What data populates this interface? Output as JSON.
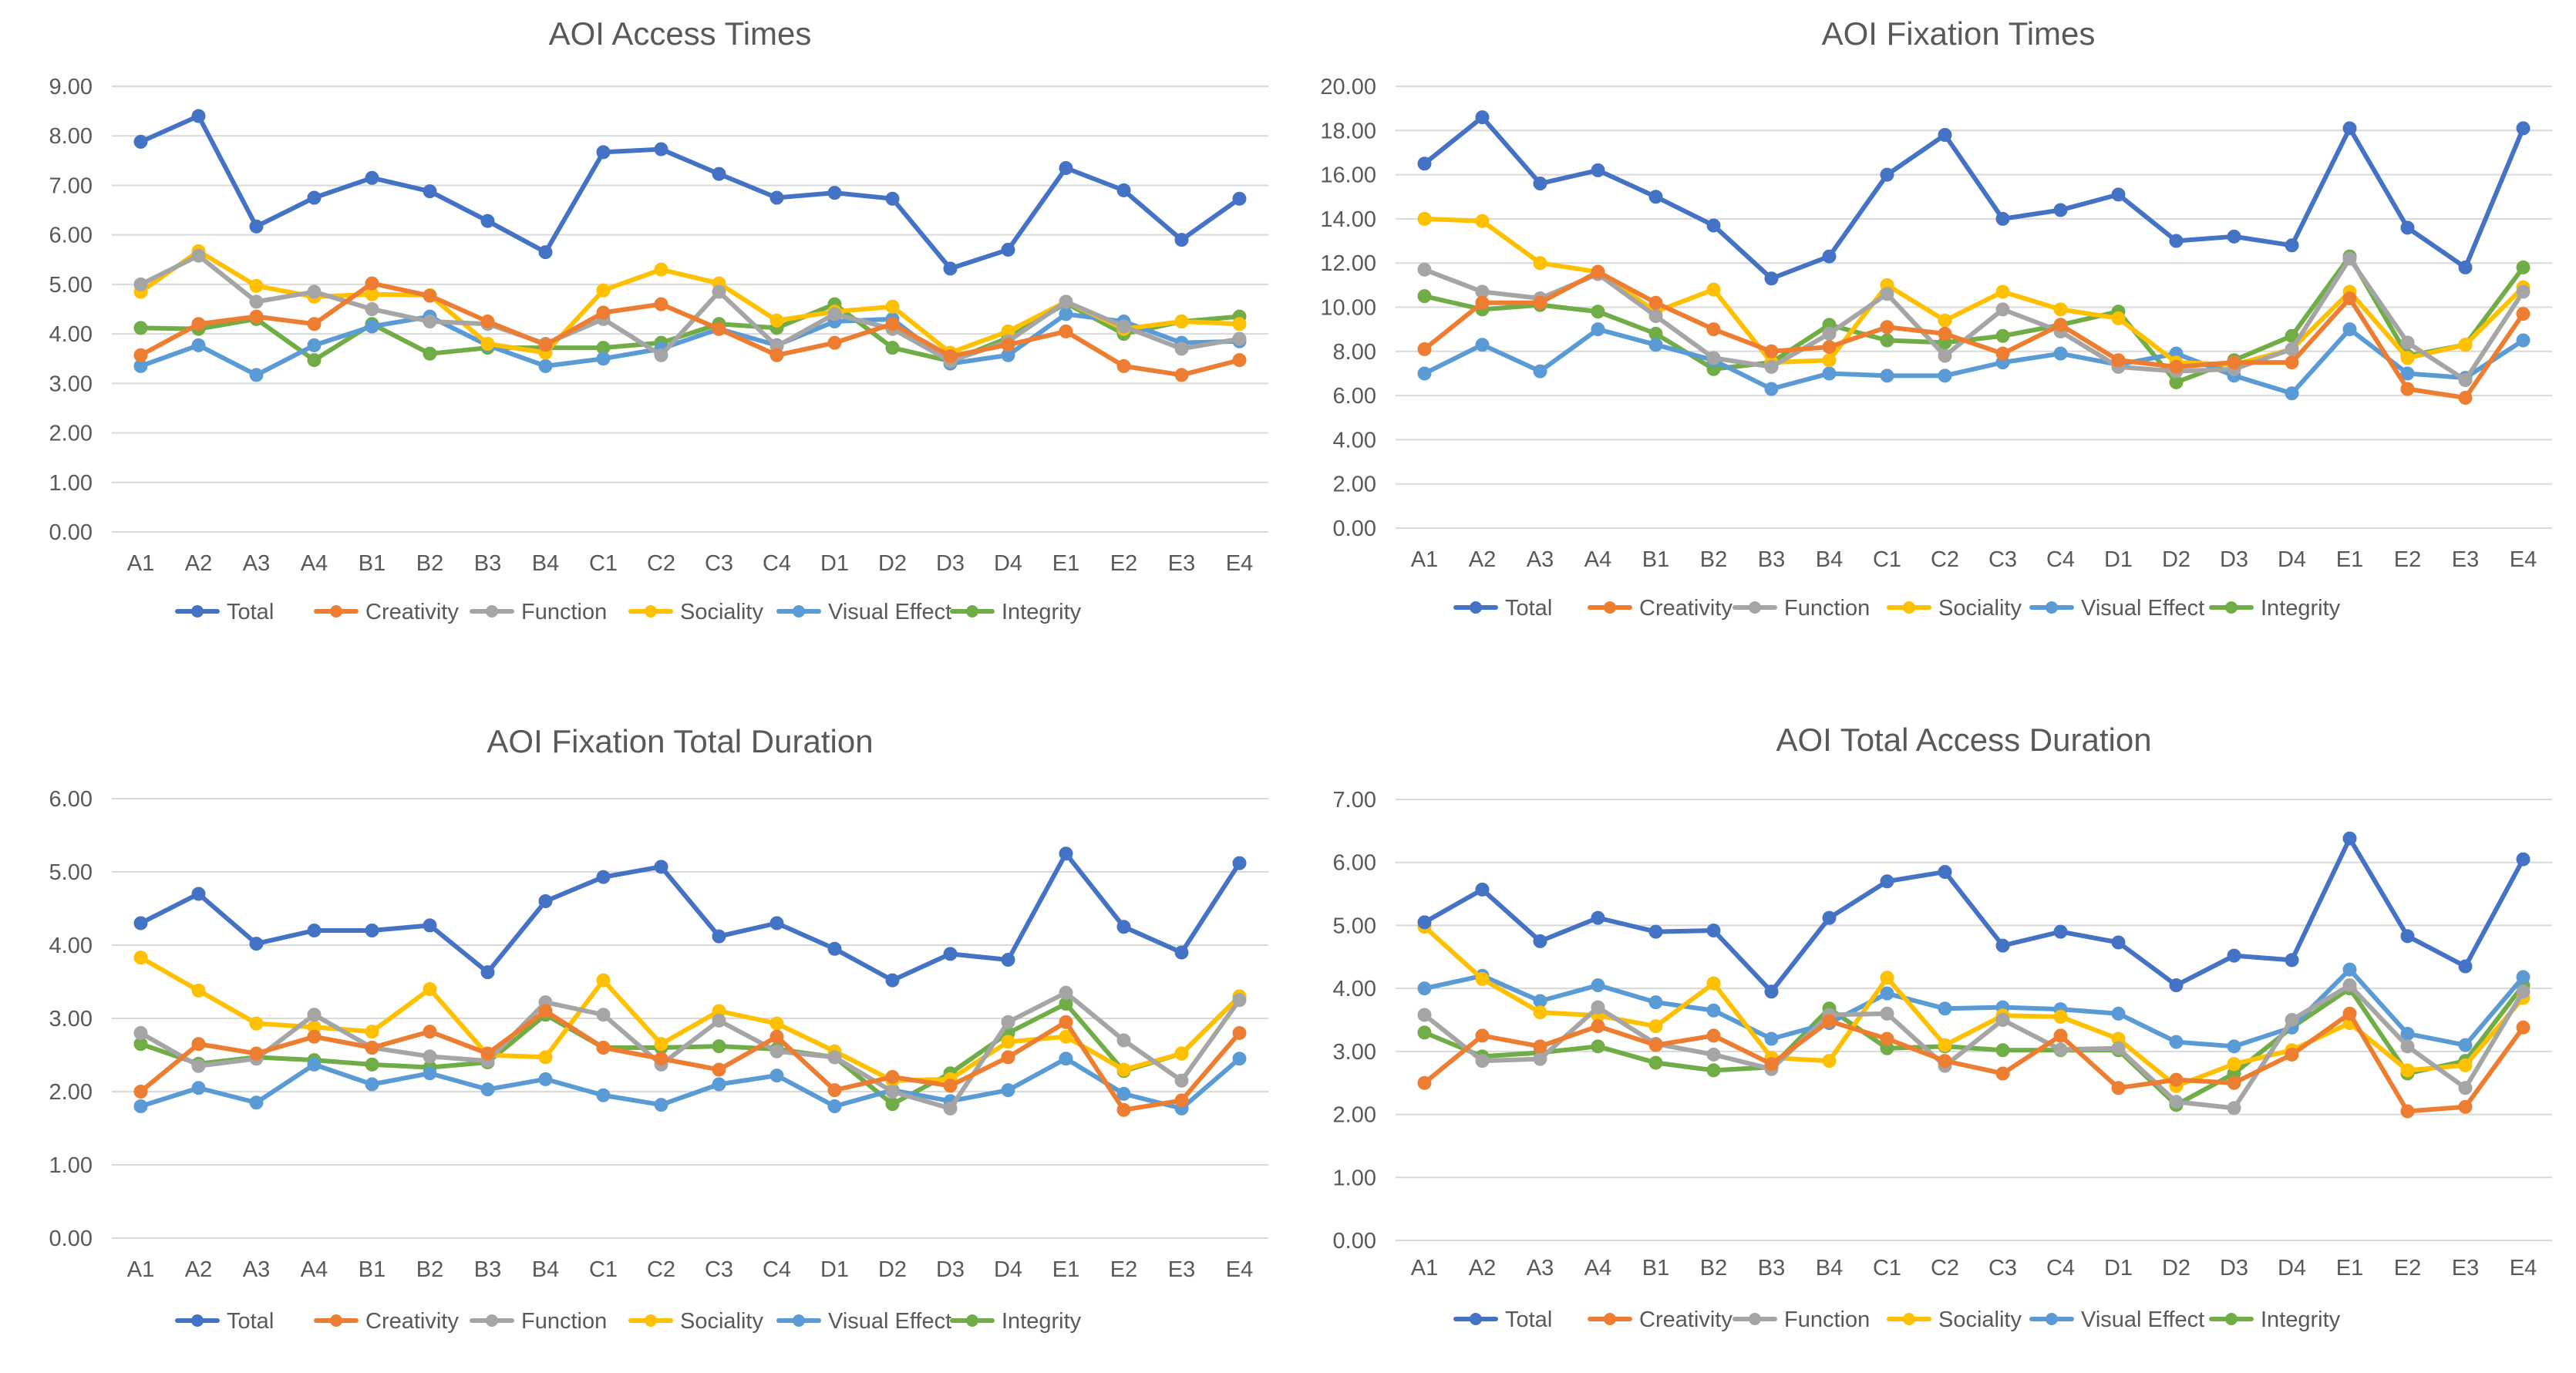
{
  "categories": [
    "A1",
    "A2",
    "A3",
    "A4",
    "B1",
    "B2",
    "B3",
    "B4",
    "C1",
    "C2",
    "C3",
    "C4",
    "D1",
    "D2",
    "D3",
    "D4",
    "E1",
    "E2",
    "E3",
    "E4"
  ],
  "series_names": [
    "Total",
    "Creativity",
    "Function",
    "Sociality",
    "Visual Effect",
    "Integrity"
  ],
  "colors": {
    "Total": "#4472c4",
    "Creativity": "#ed7d31",
    "Function": "#a5a5a5",
    "Sociality": "#ffc000",
    "Visual Effect": "#5b9bd5",
    "Integrity": "#70ad47"
  },
  "chart_data": [
    {
      "type": "line",
      "title": "AOI Access Times",
      "ylim": [
        0,
        9
      ],
      "ystep": 1,
      "grid": true,
      "legend": "bottom",
      "series": [
        {
          "name": "Total",
          "values": [
            7.88,
            8.4,
            6.17,
            6.75,
            7.15,
            6.88,
            6.28,
            5.65,
            7.67,
            7.73,
            7.23,
            6.75,
            6.85,
            6.73,
            5.32,
            5.7,
            7.35,
            6.9,
            5.9,
            6.73
          ]
        },
        {
          "name": "Creativity",
          "values": [
            3.57,
            4.2,
            4.35,
            4.2,
            5.02,
            4.77,
            4.25,
            3.78,
            4.43,
            4.6,
            4.1,
            3.57,
            3.82,
            4.2,
            3.55,
            3.78,
            4.05,
            3.35,
            3.17,
            3.47
          ]
        },
        {
          "name": "Function",
          "values": [
            5.0,
            5.58,
            4.65,
            4.85,
            4.5,
            4.25,
            4.2,
            3.8,
            4.3,
            3.57,
            4.85,
            3.75,
            4.4,
            4.1,
            3.45,
            3.85,
            4.65,
            4.15,
            3.7,
            3.9
          ]
        },
        {
          "name": "Sociality",
          "values": [
            4.85,
            5.67,
            4.97,
            4.75,
            4.8,
            4.78,
            3.8,
            3.62,
            4.88,
            5.3,
            5.02,
            4.27,
            4.45,
            4.55,
            3.62,
            4.05,
            4.65,
            4.1,
            4.25,
            4.2
          ]
        },
        {
          "name": "Visual Effect",
          "values": [
            3.35,
            3.77,
            3.17,
            3.77,
            4.15,
            4.35,
            3.77,
            3.35,
            3.5,
            3.7,
            4.1,
            3.77,
            4.25,
            4.3,
            3.4,
            3.57,
            4.4,
            4.25,
            3.82,
            3.85
          ]
        },
        {
          "name": "Integrity",
          "values": [
            4.12,
            4.1,
            4.3,
            3.47,
            4.2,
            3.6,
            3.72,
            3.72,
            3.72,
            3.82,
            4.2,
            4.12,
            4.6,
            3.72,
            3.45,
            3.92,
            4.62,
            4.0,
            4.25,
            4.35
          ]
        }
      ]
    },
    {
      "type": "line",
      "title": "AOI Fixation Times",
      "ylim": [
        0,
        20
      ],
      "ystep": 2,
      "grid": true,
      "legend": "bottom",
      "series": [
        {
          "name": "Total",
          "values": [
            16.5,
            18.6,
            15.6,
            16.2,
            15.0,
            13.7,
            11.3,
            12.3,
            16.0,
            17.8,
            14.0,
            14.4,
            15.1,
            13.0,
            13.2,
            12.8,
            18.1,
            13.6,
            11.8,
            18.1
          ]
        },
        {
          "name": "Creativity",
          "values": [
            8.1,
            10.2,
            10.2,
            11.6,
            10.2,
            9.0,
            8.0,
            8.2,
            9.1,
            8.8,
            7.9,
            9.2,
            7.6,
            7.3,
            7.5,
            7.5,
            10.4,
            6.3,
            5.9,
            9.7
          ]
        },
        {
          "name": "Function",
          "values": [
            11.7,
            10.7,
            10.4,
            11.5,
            9.6,
            7.7,
            7.3,
            8.8,
            10.6,
            7.8,
            9.9,
            8.9,
            7.3,
            7.1,
            7.2,
            8.1,
            12.2,
            8.4,
            6.7,
            10.7
          ]
        },
        {
          "name": "Sociality",
          "values": [
            14.0,
            13.9,
            12.0,
            11.6,
            9.8,
            10.8,
            7.5,
            7.6,
            11.0,
            9.4,
            10.7,
            9.9,
            9.5,
            7.5,
            7.4,
            8.1,
            10.7,
            7.7,
            8.3,
            10.9
          ]
        },
        {
          "name": "Visual Effect",
          "values": [
            7.0,
            8.3,
            7.1,
            9.0,
            8.3,
            7.6,
            6.3,
            7.0,
            6.9,
            6.9,
            7.5,
            7.9,
            7.4,
            7.9,
            6.9,
            6.1,
            9.0,
            7.0,
            6.8,
            8.5
          ]
        },
        {
          "name": "Integrity",
          "values": [
            10.5,
            9.9,
            10.1,
            9.8,
            8.8,
            7.2,
            7.5,
            9.2,
            8.5,
            8.4,
            8.7,
            9.2,
            9.8,
            6.6,
            7.6,
            8.7,
            12.3,
            7.8,
            8.3,
            11.8
          ]
        }
      ]
    },
    {
      "type": "line",
      "title": "AOI Fixation Total Duration",
      "ylim": [
        0,
        6
      ],
      "ystep": 1,
      "grid": true,
      "legend": "bottom",
      "series": [
        {
          "name": "Total",
          "values": [
            4.3,
            4.7,
            4.02,
            4.2,
            4.2,
            4.27,
            3.63,
            4.6,
            4.93,
            5.07,
            4.12,
            4.3,
            3.95,
            3.52,
            3.88,
            3.8,
            5.25,
            4.25,
            3.9,
            5.12
          ]
        },
        {
          "name": "Creativity",
          "values": [
            2.0,
            2.65,
            2.52,
            2.75,
            2.6,
            2.82,
            2.52,
            3.1,
            2.6,
            2.45,
            2.3,
            2.75,
            2.02,
            2.2,
            2.08,
            2.47,
            2.95,
            1.75,
            1.88,
            2.8
          ]
        },
        {
          "name": "Function",
          "values": [
            2.8,
            2.35,
            2.45,
            3.05,
            2.6,
            2.48,
            2.42,
            3.22,
            3.05,
            2.37,
            2.97,
            2.55,
            2.47,
            2.0,
            1.77,
            2.95,
            3.35,
            2.7,
            2.15,
            3.25
          ]
        },
        {
          "name": "Sociality",
          "values": [
            3.83,
            3.38,
            2.93,
            2.88,
            2.82,
            3.4,
            2.5,
            2.47,
            3.52,
            2.65,
            3.1,
            2.93,
            2.55,
            2.15,
            2.17,
            2.68,
            2.75,
            2.3,
            2.52,
            3.3
          ]
        },
        {
          "name": "Visual Effect",
          "values": [
            1.8,
            2.05,
            1.85,
            2.37,
            2.1,
            2.25,
            2.03,
            2.17,
            1.95,
            1.82,
            2.1,
            2.22,
            1.8,
            2.02,
            1.87,
            2.02,
            2.45,
            1.97,
            1.77,
            2.45
          ]
        },
        {
          "name": "Integrity",
          "values": [
            2.65,
            2.38,
            2.47,
            2.43,
            2.37,
            2.33,
            2.4,
            3.05,
            2.6,
            2.6,
            2.62,
            2.58,
            2.47,
            1.83,
            2.25,
            2.8,
            3.2,
            2.28,
            2.52,
            3.3
          ]
        }
      ]
    },
    {
      "type": "line",
      "title": "AOI Total Access Duration",
      "ylim": [
        0,
        7
      ],
      "ystep": 1,
      "grid": true,
      "legend": "bottom",
      "series": [
        {
          "name": "Total",
          "values": [
            5.05,
            5.57,
            4.75,
            5.12,
            4.9,
            4.92,
            3.95,
            5.12,
            5.7,
            5.85,
            4.68,
            4.9,
            4.73,
            4.05,
            4.52,
            4.45,
            6.38,
            4.83,
            4.35,
            6.05
          ]
        },
        {
          "name": "Creativity",
          "values": [
            2.5,
            3.25,
            3.08,
            3.4,
            3.1,
            3.25,
            2.8,
            3.48,
            3.2,
            2.85,
            2.65,
            3.25,
            2.42,
            2.55,
            2.5,
            2.95,
            3.6,
            2.05,
            2.12,
            3.38
          ]
        },
        {
          "name": "Function",
          "values": [
            3.58,
            2.85,
            2.88,
            3.7,
            3.12,
            2.95,
            2.72,
            3.58,
            3.6,
            2.77,
            3.5,
            3.03,
            3.05,
            2.2,
            2.1,
            3.5,
            4.05,
            3.08,
            2.42,
            3.95
          ]
        },
        {
          "name": "Sociality",
          "values": [
            4.98,
            4.15,
            3.62,
            3.57,
            3.4,
            4.08,
            2.9,
            2.85,
            4.17,
            3.1,
            3.57,
            3.55,
            3.2,
            2.45,
            2.8,
            3.02,
            3.45,
            2.7,
            2.78,
            3.85
          ]
        },
        {
          "name": "Visual Effect",
          "values": [
            4.0,
            4.2,
            3.8,
            4.05,
            3.78,
            3.65,
            3.2,
            3.45,
            3.92,
            3.68,
            3.7,
            3.67,
            3.6,
            3.15,
            3.08,
            3.38,
            4.3,
            3.28,
            3.1,
            4.18
          ]
        },
        {
          "name": "Integrity",
          "values": [
            3.3,
            2.92,
            2.98,
            3.08,
            2.82,
            2.7,
            2.75,
            3.68,
            3.05,
            3.08,
            3.02,
            3.02,
            3.02,
            2.15,
            2.65,
            3.38,
            4.0,
            2.65,
            2.85,
            4.05
          ]
        }
      ]
    }
  ]
}
